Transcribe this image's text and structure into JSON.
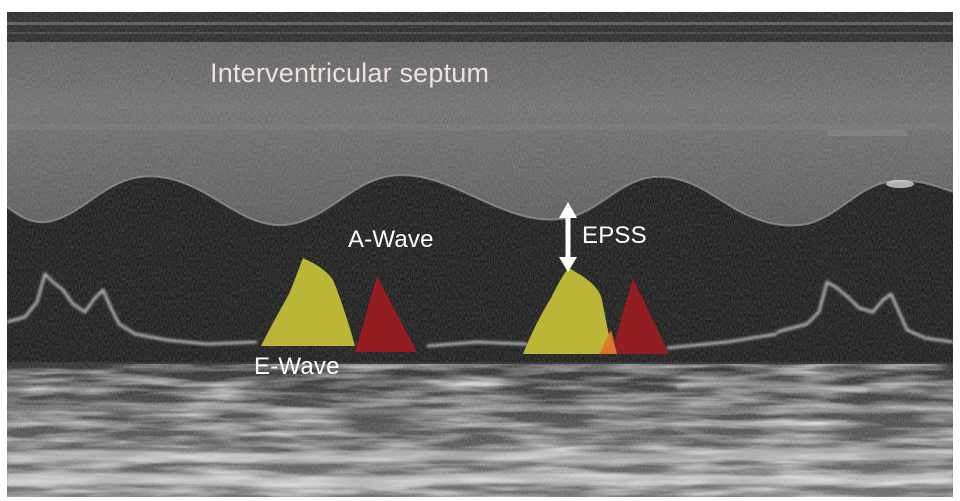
{
  "labels": {
    "septum": "Interventricular septum",
    "a_wave": "A-Wave",
    "e_wave": "E-Wave",
    "epss": "EPSS"
  },
  "colors": {
    "e_wave_fill": "#c9c23a",
    "a_wave_fill": "#9b1c22",
    "overlap_fill": "#e07a2a",
    "arrow": "#ffffff",
    "label_text": "#ffffff",
    "septum_text": "#f0dede"
  }
}
